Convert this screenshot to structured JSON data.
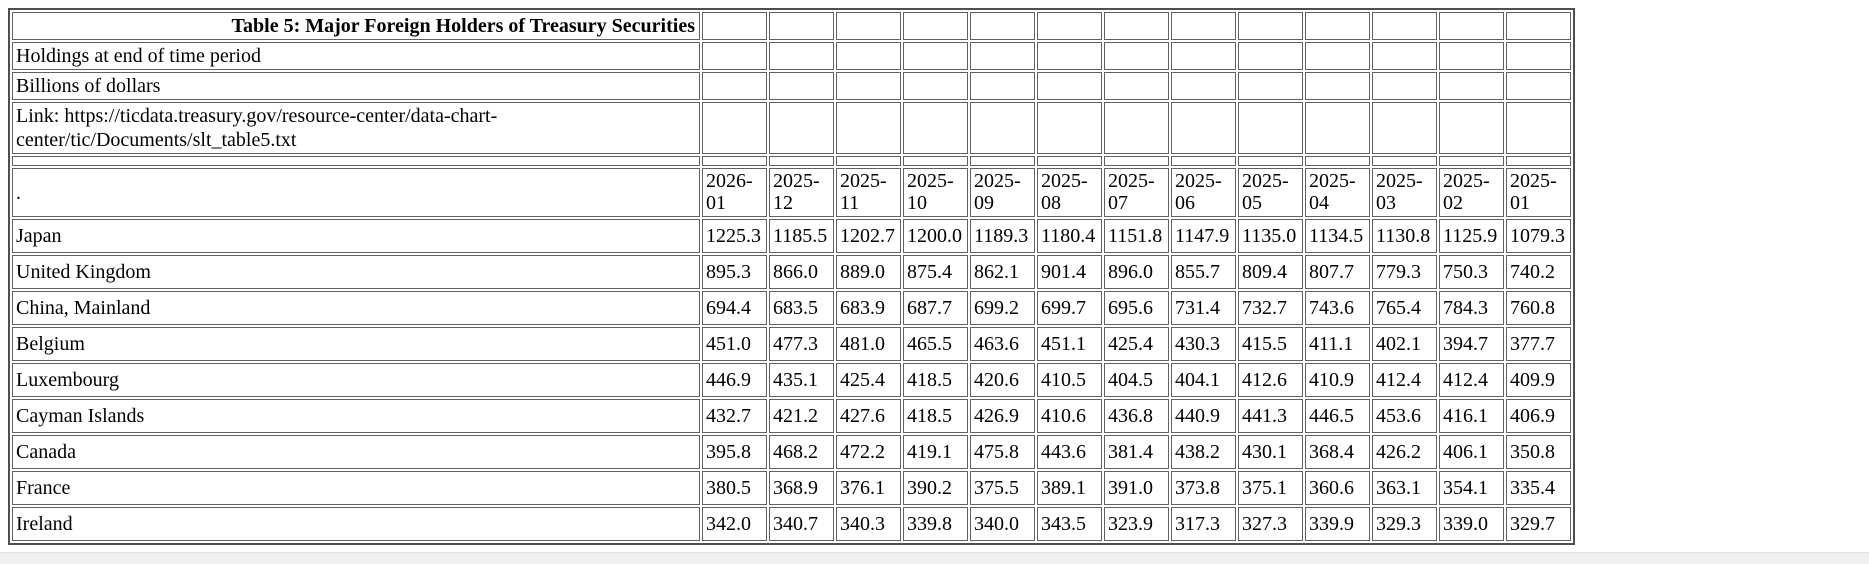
{
  "info_rows": [
    {
      "name": "table-title",
      "role": "title",
      "text": "Table 5: Major Foreign Holders of Treasury Securities"
    },
    {
      "name": "holdings-note",
      "role": "note",
      "text": "Holdings at end of time period"
    },
    {
      "name": "units-note",
      "role": "note",
      "text": "Billions of dollars"
    },
    {
      "name": "source-link",
      "role": "link",
      "text": "Link: https://ticdata.treasury.gov/resource-center/data-chart-center/tic/Documents/slt_table5.txt"
    }
  ],
  "table": {
    "corner_label": ".",
    "columns": [
      "2026-01",
      "2025-12",
      "2025-11",
      "2025-10",
      "2025-09",
      "2025-08",
      "2025-07",
      "2025-06",
      "2025-05",
      "2025-04",
      "2025-03",
      "2025-02",
      "2025-01"
    ],
    "rows": [
      {
        "label": "Japan",
        "values": [
          "1225.3",
          "1185.5",
          "1202.7",
          "1200.0",
          "1189.3",
          "1180.4",
          "1151.8",
          "1147.9",
          "1135.0",
          "1134.5",
          "1130.8",
          "1125.9",
          "1079.3"
        ]
      },
      {
        "label": "United Kingdom",
        "values": [
          "895.3",
          "866.0",
          "889.0",
          "875.4",
          "862.1",
          "901.4",
          "896.0",
          "855.7",
          "809.4",
          "807.7",
          "779.3",
          "750.3",
          "740.2"
        ]
      },
      {
        "label": "China, Mainland",
        "values": [
          "694.4",
          "683.5",
          "683.9",
          "687.7",
          "699.2",
          "699.7",
          "695.6",
          "731.4",
          "732.7",
          "743.6",
          "765.4",
          "784.3",
          "760.8"
        ]
      },
      {
        "label": "Belgium",
        "values": [
          "451.0",
          "477.3",
          "481.0",
          "465.5",
          "463.6",
          "451.1",
          "425.4",
          "430.3",
          "415.5",
          "411.1",
          "402.1",
          "394.7",
          "377.7"
        ]
      },
      {
        "label": "Luxembourg",
        "values": [
          "446.9",
          "435.1",
          "425.4",
          "418.5",
          "420.6",
          "410.5",
          "404.5",
          "404.1",
          "412.6",
          "410.9",
          "412.4",
          "412.4",
          "409.9"
        ]
      },
      {
        "label": "Cayman Islands",
        "values": [
          "432.7",
          "421.2",
          "427.6",
          "418.5",
          "426.9",
          "410.6",
          "436.8",
          "440.9",
          "441.3",
          "446.5",
          "453.6",
          "416.1",
          "406.9"
        ]
      },
      {
        "label": "Canada",
        "values": [
          "395.8",
          "468.2",
          "472.2",
          "419.1",
          "475.8",
          "443.6",
          "381.4",
          "438.2",
          "430.1",
          "368.4",
          "426.2",
          "406.1",
          "350.8"
        ]
      },
      {
        "label": "France",
        "values": [
          "380.5",
          "368.9",
          "376.1",
          "390.2",
          "375.5",
          "389.1",
          "391.0",
          "373.8",
          "375.1",
          "360.6",
          "363.1",
          "354.1",
          "335.4"
        ]
      },
      {
        "label": "Ireland",
        "values": [
          "342.0",
          "340.7",
          "340.3",
          "339.8",
          "340.0",
          "343.5",
          "323.9",
          "317.3",
          "327.3",
          "339.9",
          "329.3",
          "339.0",
          "329.7"
        ]
      }
    ]
  },
  "colors": {
    "background": "#ffffff",
    "text": "#000000",
    "border_outer": "#4f4f4f",
    "border_cell": "#616161",
    "scrollbar_track": "#f0f0f0"
  }
}
